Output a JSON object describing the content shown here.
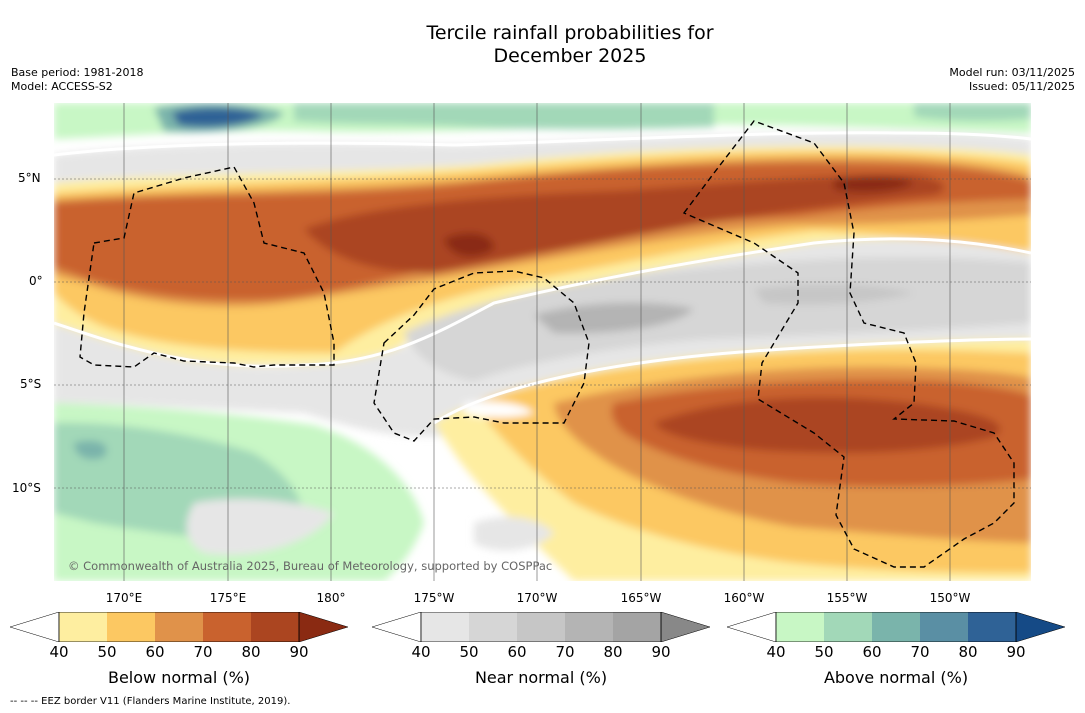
{
  "title": {
    "line1": "Tercile rainfall probabilities for",
    "line2": "December 2025"
  },
  "left_meta": {
    "base_period": "Base period: 1981-2018",
    "model": "Model: ACCESS-S2"
  },
  "right_meta": {
    "model_run": "Model run: 03/11/2025",
    "issued": "Issued: 05/11/2025"
  },
  "latitudes": [
    "5°N",
    "0°",
    "5°S",
    "10°S"
  ],
  "longitudes": [
    "170°E",
    "175°E",
    "180°",
    "175°W",
    "170°W",
    "165°W",
    "160°W",
    "155°W",
    "150°W"
  ],
  "credit": "© Commonwealth of Australia 2025, Bureau of Meteorology, supported by COSPPac",
  "footnote": "-- -- -- EEZ border V11 (Flanders Marine Institute, 2019).",
  "colorbars": [
    {
      "label": "Below normal (%)",
      "ticks": [
        "40",
        "50",
        "60",
        "70",
        "80",
        "90"
      ],
      "colors": [
        "#ffffff",
        "#feeea0",
        "#fcc862",
        "#e0924a",
        "#c9622e",
        "#ab4520",
        "#8a2a12"
      ]
    },
    {
      "label": "Near normal (%)",
      "ticks": [
        "40",
        "50",
        "60",
        "70",
        "80",
        "90"
      ],
      "colors": [
        "#ffffff",
        "#e6e6e6",
        "#d6d6d6",
        "#c6c6c6",
        "#b4b4b4",
        "#a4a4a4",
        "#888888"
      ]
    },
    {
      "label": "Above normal (%)",
      "ticks": [
        "40",
        "50",
        "60",
        "70",
        "80",
        "90"
      ],
      "colors": [
        "#ffffff",
        "#c8f7c5",
        "#a2d8b8",
        "#7ab4ab",
        "#5a8fa4",
        "#2f6296",
        "#154a86"
      ]
    }
  ],
  "map_colors": {
    "background": "#ffffff",
    "eez": "#000000"
  }
}
